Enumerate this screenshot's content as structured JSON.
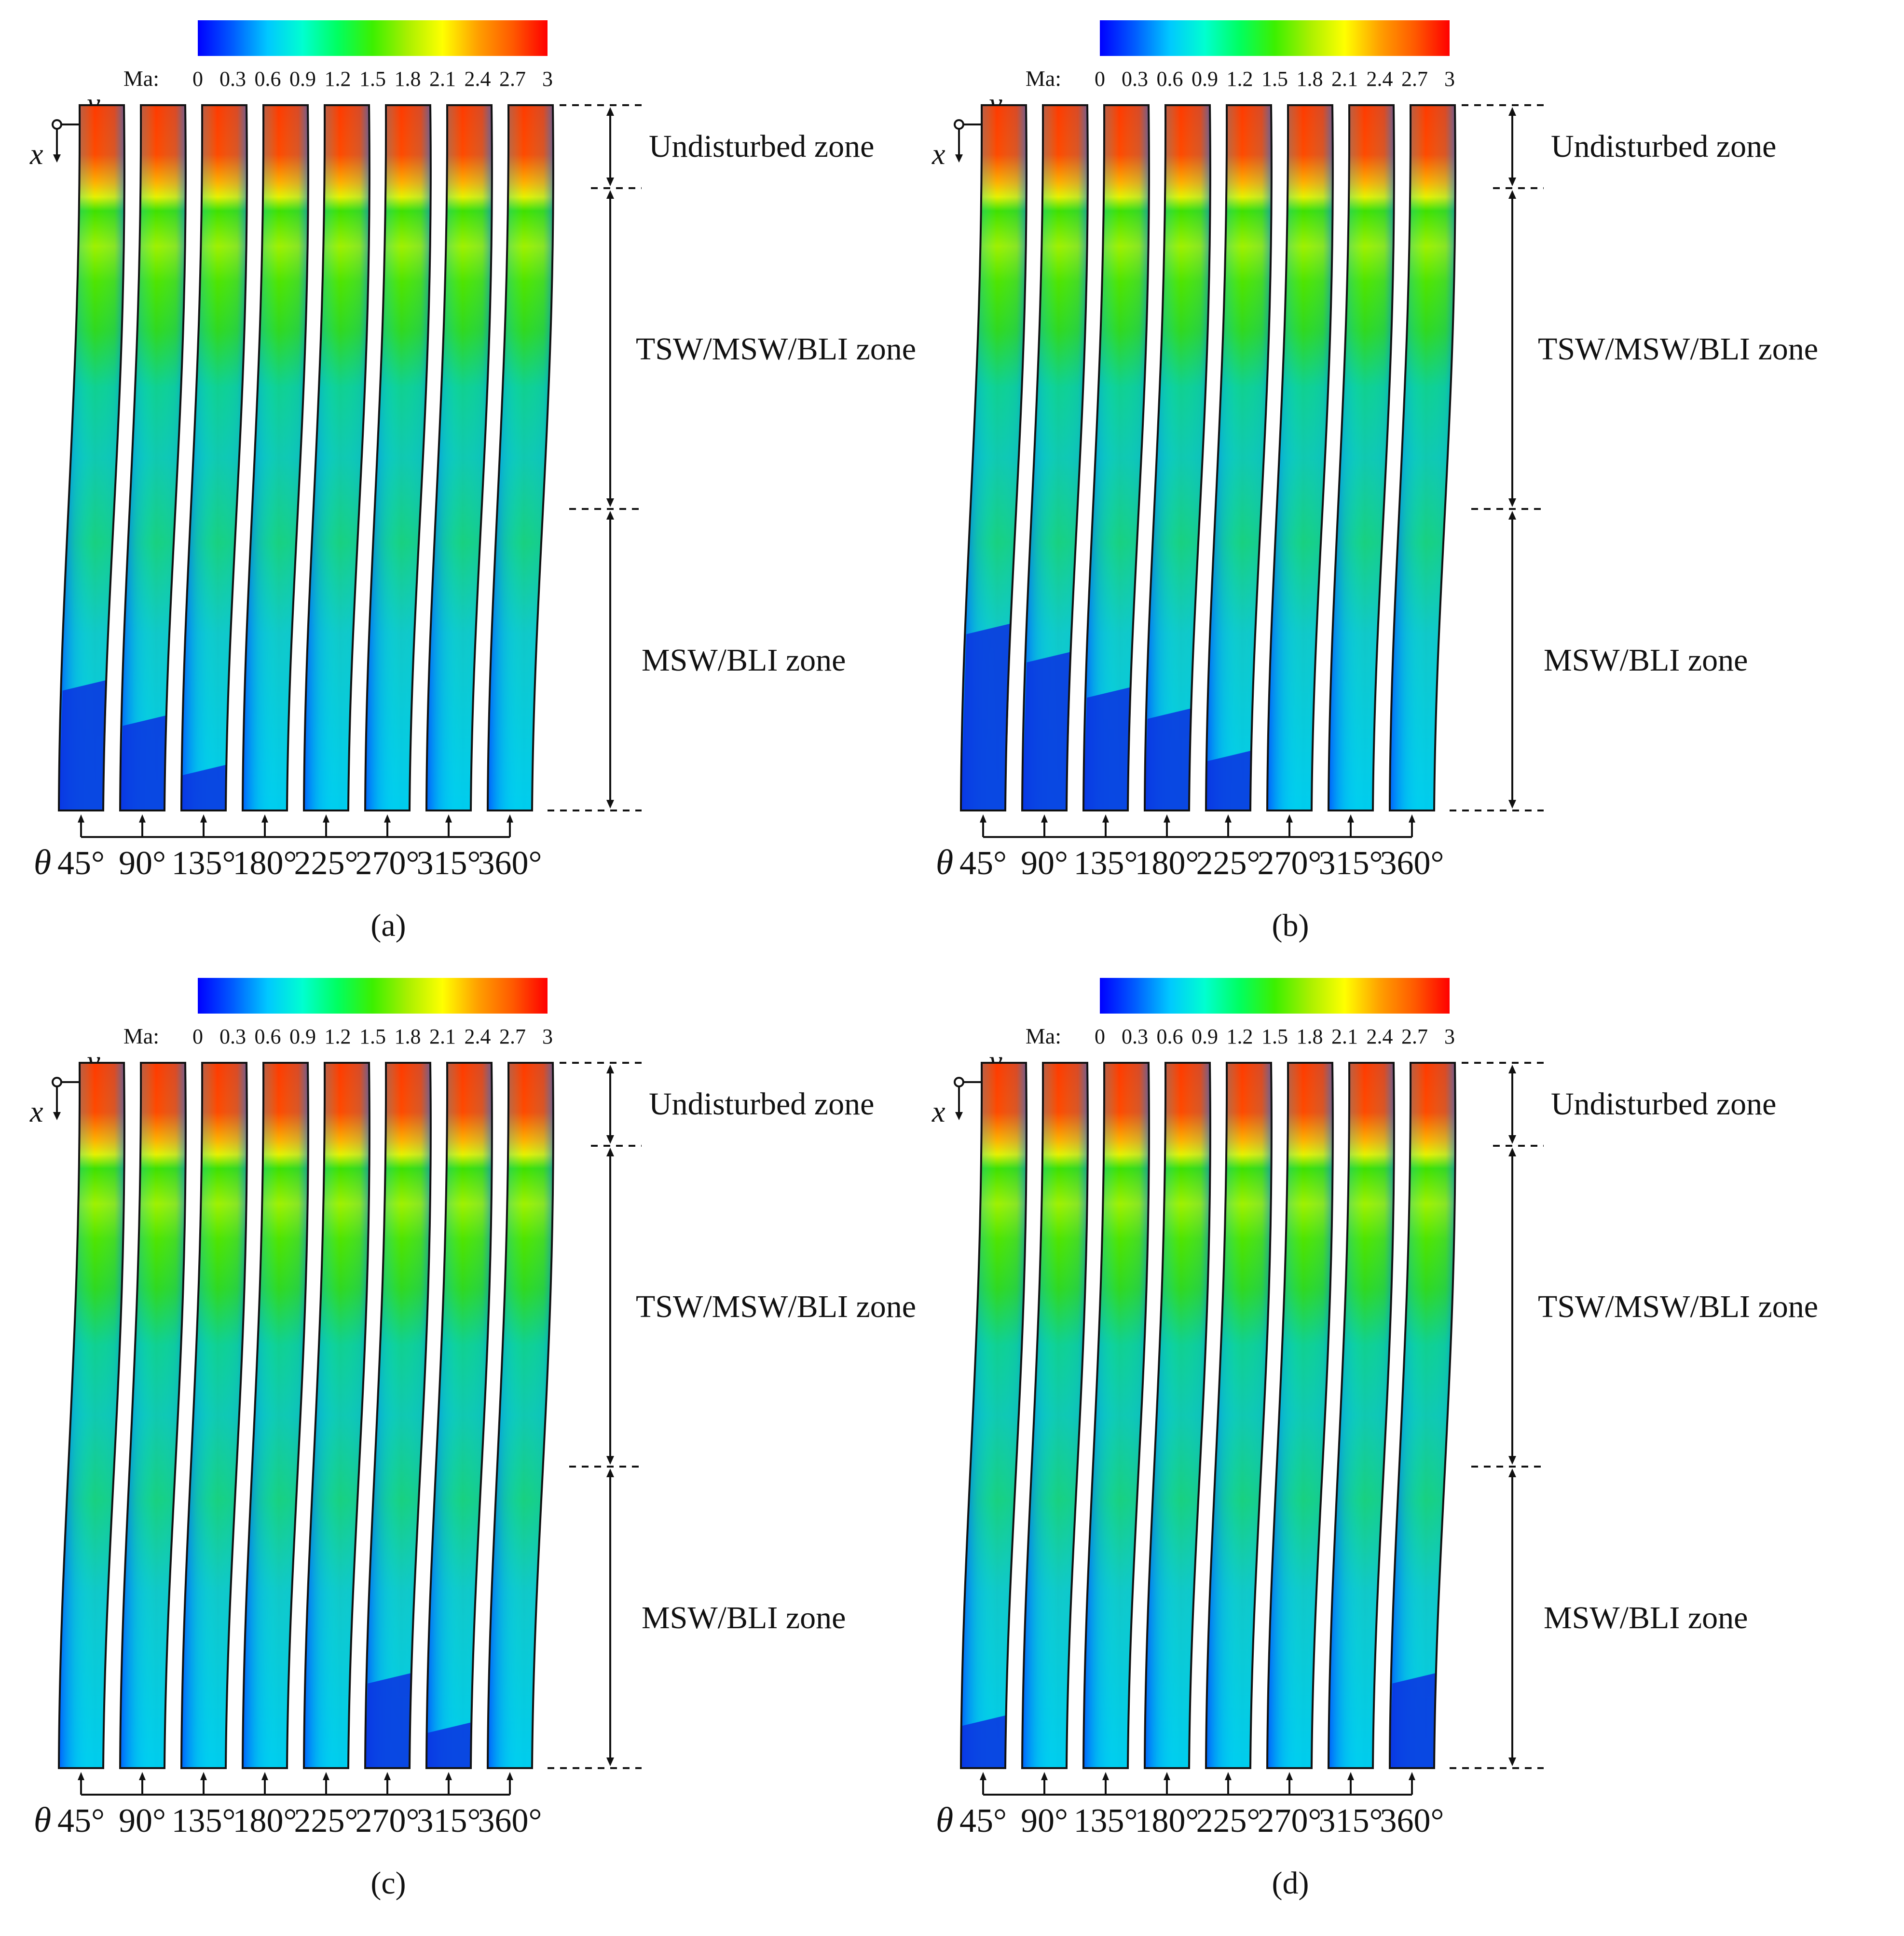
{
  "figure": {
    "colorbar": {
      "label": "Ma:",
      "ticks": [
        "0",
        "0.3",
        "0.6",
        "0.9",
        "1.2",
        "1.5",
        "1.8",
        "2.1",
        "2.4",
        "2.7",
        "3"
      ],
      "colors": [
        "#0000ff",
        "#005cff",
        "#00c8ff",
        "#00ffd0",
        "#00ff60",
        "#3cf000",
        "#a8f000",
        "#ffff00",
        "#ffa000",
        "#ff5a00",
        "#ff0000"
      ]
    },
    "axes": {
      "x_label": "x",
      "y_label": "y"
    },
    "theta_symbol": "θ",
    "angles": [
      "45°",
      "90°",
      "135°",
      "180°",
      "225°",
      "270°",
      "315°",
      "360°"
    ],
    "zones": [
      "Undisturbed zone",
      "TSW/MSW/BLI zone",
      "MSW/BLI zone"
    ],
    "panels": [
      {
        "label": "(a)",
        "low_speed_start_fraction": [
          0.83,
          0.88,
          0.95,
          1.0,
          1.0,
          1.0,
          1.0,
          1.0
        ]
      },
      {
        "label": "(b)",
        "low_speed_start_fraction": [
          0.75,
          0.79,
          0.84,
          0.87,
          0.93,
          1.0,
          1.0,
          1.0
        ]
      },
      {
        "label": "(c)",
        "low_speed_start_fraction": [
          1.0,
          1.0,
          1.0,
          1.0,
          1.0,
          0.88,
          0.95,
          1.0
        ]
      },
      {
        "label": "(d)",
        "low_speed_start_fraction": [
          0.94,
          1.0,
          1.0,
          1.0,
          1.0,
          1.0,
          1.0,
          0.88
        ]
      }
    ]
  }
}
